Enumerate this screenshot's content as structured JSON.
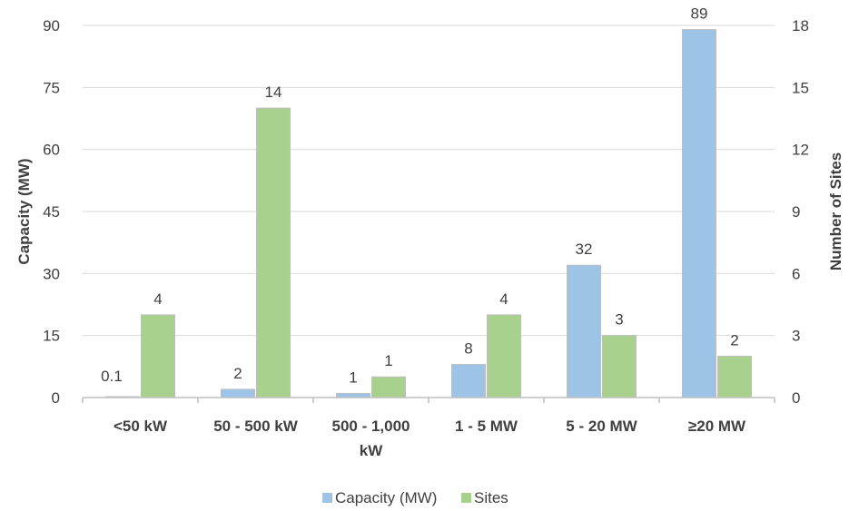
{
  "chart_data": {
    "type": "bar",
    "categories": [
      [
        "<50 kW"
      ],
      [
        "50 - 500 kW"
      ],
      [
        "500 - 1,000",
        "kW"
      ],
      [
        "1 - 5 MW"
      ],
      [
        "5 - 20 MW"
      ],
      [
        "≥20 MW"
      ]
    ],
    "series": [
      {
        "name": "Capacity (MW)",
        "axis": "left",
        "color": "#9dc3e6",
        "values": [
          0.1,
          2,
          1,
          8,
          32,
          89
        ],
        "labels": [
          "0.1",
          "2",
          "1",
          "8",
          "32",
          "89"
        ]
      },
      {
        "name": "Sites",
        "axis": "right",
        "color": "#a9d18e",
        "values": [
          4,
          14,
          1,
          4,
          3,
          2
        ],
        "labels": [
          "4",
          "14",
          "1",
          "4",
          "3",
          "2"
        ]
      }
    ],
    "ylabel": "Capacity (MW)",
    "y2label": "Number of Sites",
    "ylim": [
      0,
      90
    ],
    "y2lim": [
      0,
      18
    ],
    "yticks": [
      "0",
      "15",
      "30",
      "45",
      "60",
      "75",
      "90"
    ],
    "y2ticks": [
      "0",
      "3",
      "6",
      "9",
      "12",
      "15",
      "18"
    ],
    "grid": true,
    "legend_position": "bottom"
  }
}
